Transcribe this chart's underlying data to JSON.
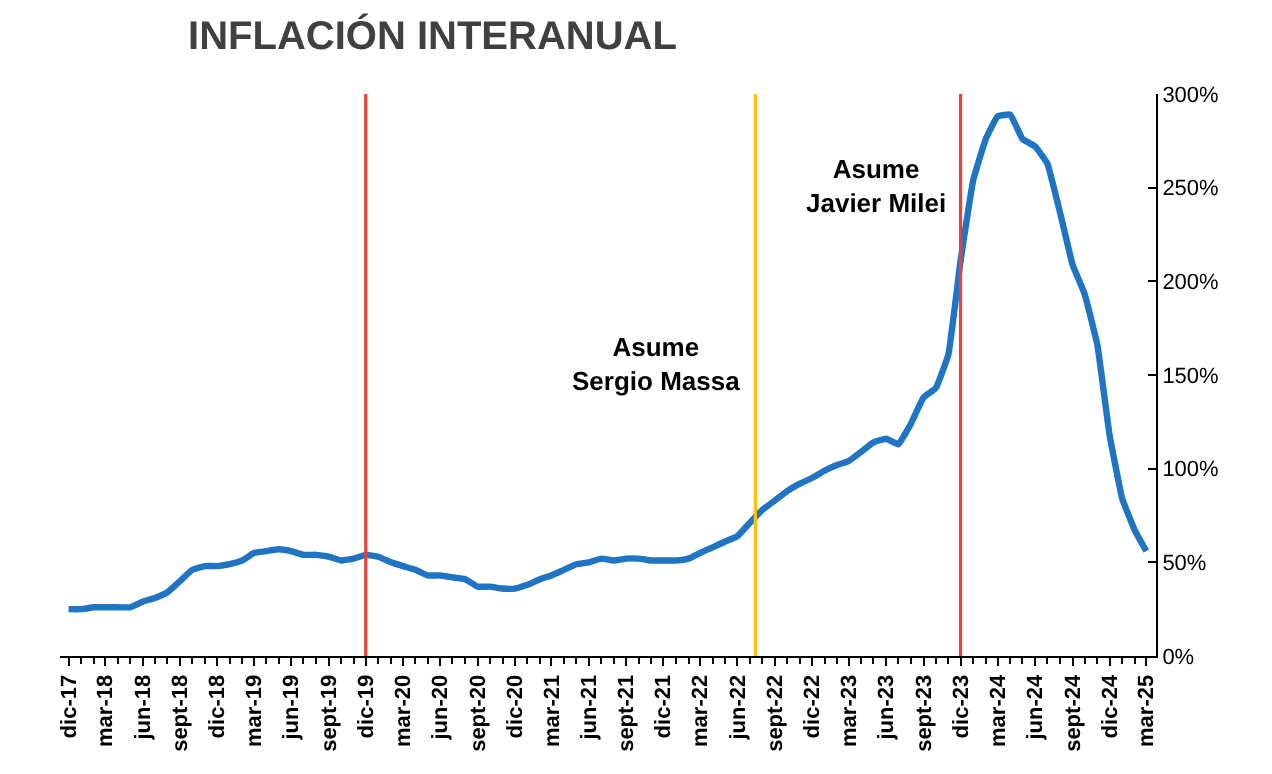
{
  "chart_data": {
    "type": "line",
    "title": "INFLACIÓN INTERANUAL",
    "x": [
      "2017-12",
      "2018-01",
      "2018-02",
      "2018-03",
      "2018-04",
      "2018-05",
      "2018-06",
      "2018-07",
      "2018-08",
      "2018-09",
      "2018-10",
      "2018-11",
      "2018-12",
      "2019-01",
      "2019-02",
      "2019-03",
      "2019-04",
      "2019-05",
      "2019-06",
      "2019-07",
      "2019-08",
      "2019-09",
      "2019-10",
      "2019-11",
      "2019-12",
      "2020-01",
      "2020-02",
      "2020-03",
      "2020-04",
      "2020-05",
      "2020-06",
      "2020-07",
      "2020-08",
      "2020-09",
      "2020-10",
      "2020-11",
      "2020-12",
      "2021-01",
      "2021-02",
      "2021-03",
      "2021-04",
      "2021-05",
      "2021-06",
      "2021-07",
      "2021-08",
      "2021-09",
      "2021-10",
      "2021-11",
      "2021-12",
      "2022-01",
      "2022-02",
      "2022-03",
      "2022-04",
      "2022-05",
      "2022-06",
      "2022-07",
      "2022-08",
      "2022-09",
      "2022-10",
      "2022-11",
      "2022-12",
      "2023-01",
      "2023-02",
      "2023-03",
      "2023-04",
      "2023-05",
      "2023-06",
      "2023-07",
      "2023-08",
      "2023-09",
      "2023-10",
      "2023-11",
      "2023-12",
      "2024-01",
      "2024-02",
      "2024-03",
      "2024-04",
      "2024-05",
      "2024-06",
      "2024-07",
      "2024-08",
      "2024-09",
      "2024-10",
      "2024-11",
      "2024-12",
      "2025-01",
      "2025-02",
      "2025-03"
    ],
    "series": [
      {
        "color": "#1f74c4",
        "values": [
          25,
          25,
          26,
          26,
          26,
          26,
          29,
          31,
          34,
          40,
          46,
          48,
          48,
          49,
          51,
          55,
          56,
          57,
          56,
          54,
          54,
          53,
          51,
          52,
          54,
          53,
          50,
          48,
          46,
          43,
          43,
          42,
          41,
          37,
          37,
          36,
          36,
          38,
          41,
          43,
          46,
          49,
          50,
          52,
          51,
          52,
          52,
          51,
          51,
          51,
          52,
          55,
          58,
          61,
          64,
          71,
          78,
          83,
          88,
          92,
          95,
          99,
          102,
          104,
          109,
          114,
          116,
          113,
          124,
          138,
          143,
          161,
          211,
          254,
          276,
          288,
          289,
          276,
          272,
          263,
          237,
          209,
          193,
          166,
          118,
          84,
          67,
          56
        ]
      }
    ],
    "xlim": [
      "2017-11-10",
      "2025-03-25"
    ],
    "xticks": [
      {
        "value": "2017-12",
        "label": "dic-17"
      },
      {
        "value": "2018-03",
        "label": "mar-18"
      },
      {
        "value": "2018-06",
        "label": "jun-18"
      },
      {
        "value": "2018-09",
        "label": "sept-18"
      },
      {
        "value": "2018-12",
        "label": "dic-18"
      },
      {
        "value": "2019-03",
        "label": "mar-19"
      },
      {
        "value": "2019-06",
        "label": "jun-19"
      },
      {
        "value": "2019-09",
        "label": "sept-19"
      },
      {
        "value": "2019-12",
        "label": "dic-19"
      },
      {
        "value": "2020-03",
        "label": "mar-20"
      },
      {
        "value": "2020-06",
        "label": "jun-20"
      },
      {
        "value": "2020-09",
        "label": "sept-20"
      },
      {
        "value": "2020-12",
        "label": "dic-20"
      },
      {
        "value": "2021-03",
        "label": "mar-21"
      },
      {
        "value": "2021-06",
        "label": "jun-21"
      },
      {
        "value": "2021-09",
        "label": "sept-21"
      },
      {
        "value": "2021-12",
        "label": "dic-21"
      },
      {
        "value": "2022-03",
        "label": "mar-22"
      },
      {
        "value": "2022-06",
        "label": "jun-22"
      },
      {
        "value": "2022-09",
        "label": "sept-22"
      },
      {
        "value": "2022-12",
        "label": "dic-22"
      },
      {
        "value": "2023-03",
        "label": "mar-23"
      },
      {
        "value": "2023-06",
        "label": "jun-23"
      },
      {
        "value": "2023-09",
        "label": "sept-23"
      },
      {
        "value": "2023-12",
        "label": "dic-23"
      },
      {
        "value": "2024-03",
        "label": "mar-24"
      },
      {
        "value": "2024-06",
        "label": "jun-24"
      },
      {
        "value": "2024-09",
        "label": "sept-24"
      },
      {
        "value": "2024-12",
        "label": "dic-24"
      },
      {
        "value": "2025-03",
        "label": "mar-25"
      }
    ],
    "ylim": [
      0,
      300
    ],
    "yticks": [
      {
        "value": 0,
        "label": "0%"
      },
      {
        "value": 50,
        "label": "50%"
      },
      {
        "value": 100,
        "label": "100%"
      },
      {
        "value": 150,
        "label": "150%"
      },
      {
        "value": 200,
        "label": "200%"
      },
      {
        "value": 250,
        "label": "250%"
      },
      {
        "value": 300,
        "label": "300%"
      }
    ],
    "ref_lines": [
      {
        "axis": "x",
        "value": "2019-12",
        "color": "#e8413a"
      },
      {
        "axis": "x",
        "value": "2022-07-15",
        "color": "#ffc000",
        "label": "Asume\nSergio Massa"
      },
      {
        "axis": "x",
        "value": "2023-12",
        "color": "#e8413a",
        "label": "Asume\nJavier Milei"
      }
    ],
    "grid": false,
    "marker": "none",
    "line_style": "solid"
  }
}
